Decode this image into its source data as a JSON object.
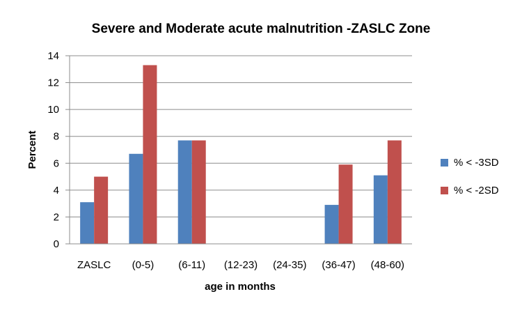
{
  "chart_data": {
    "type": "bar",
    "title": "Severe and Moderate acute malnutrition -ZASLC Zone",
    "xlabel": "age in months",
    "ylabel": "Percent",
    "ylim": [
      0,
      14
    ],
    "yticks": [
      "0",
      "2",
      "4",
      "6",
      "8",
      "10",
      "12",
      "14"
    ],
    "grid": true,
    "legend_position": "right",
    "categories": [
      "ZASLC",
      "(0-5)",
      "(6-11)",
      "(12-23)",
      "(24-35)",
      "(36-47)",
      "(48-60)"
    ],
    "series": [
      {
        "name": "% < -3SD",
        "color": "#4F81BD",
        "values": [
          3.1,
          6.7,
          7.7,
          0,
          0,
          2.9,
          5.1
        ]
      },
      {
        "name": "% < -2SD",
        "color": "#C0504D",
        "values": [
          5.0,
          13.3,
          7.7,
          0,
          0,
          5.9,
          7.7
        ]
      }
    ]
  }
}
